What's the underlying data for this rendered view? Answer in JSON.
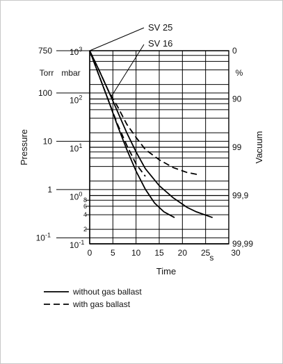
{
  "chart_data": {
    "type": "line",
    "x_axis": {
      "label": "Time",
      "unit": "s",
      "ticks": [
        "0",
        "5",
        "10",
        "15",
        "20",
        "25",
        "30"
      ],
      "range": [
        0,
        30
      ],
      "grid": true
    },
    "y_axis": {
      "label": "Pressure",
      "scale": "log",
      "range_mbar": [
        0.1,
        1000
      ],
      "torr_unit": "Torr",
      "torr_ticks": [
        {
          "label": "750",
          "value_mbar": 1000
        },
        {
          "label": "100",
          "value_mbar": 133
        },
        {
          "label": "10",
          "value_mbar": 13.3
        },
        {
          "label": "1",
          "value_mbar": 1.33
        },
        {
          "label": "10",
          "sup": "-1",
          "value_mbar": 0.133
        }
      ],
      "mbar_unit": "mbar",
      "mbar_ticks": [
        {
          "base": "10",
          "sup": "3",
          "value_mbar": 1000
        },
        {
          "base": "10",
          "sup": "2",
          "value_mbar": 100
        },
        {
          "base": "10",
          "sup": "1",
          "value_mbar": 10
        },
        {
          "base": "10",
          "sup": "0",
          "value_mbar": 1
        },
        {
          "base": "10",
          "sup": "-1",
          "value_mbar": 0.1
        }
      ],
      "mbar_minor_ticks": [
        {
          "label": "8",
          "value_mbar": 0.8
        },
        {
          "label": "6",
          "value_mbar": 0.6
        },
        {
          "label": "4",
          "value_mbar": 0.4
        },
        {
          "label": "2",
          "value_mbar": 0.2
        }
      ]
    },
    "y2_axis": {
      "label": "Vacuum",
      "unit": "%",
      "ticks": [
        {
          "label": "0",
          "value_mbar": 1000
        },
        {
          "label": "90",
          "value_mbar": 100
        },
        {
          "label": "99",
          "value_mbar": 10
        },
        {
          "label": "99,9",
          "value_mbar": 1
        },
        {
          "label": "99,99",
          "value_mbar": 0.1
        }
      ]
    },
    "series": [
      {
        "name": "SV 25",
        "style": "solid",
        "points": [
          [
            0,
            1000
          ],
          [
            2,
            310
          ],
          [
            4,
            95
          ],
          [
            6,
            28
          ],
          [
            8,
            9
          ],
          [
            10,
            3.2
          ],
          [
            12,
            1.35
          ],
          [
            14,
            0.7
          ],
          [
            16,
            0.46
          ],
          [
            18.3,
            0.35
          ]
        ]
      },
      {
        "name": "SV 25",
        "style": "dashed",
        "points": [
          [
            0,
            1000
          ],
          [
            2,
            310
          ],
          [
            4,
            95
          ],
          [
            6,
            30
          ],
          [
            8,
            11
          ],
          [
            10,
            4.5
          ],
          [
            12,
            2.5
          ]
        ]
      },
      {
        "name": "SV 16",
        "style": "solid",
        "points": [
          [
            0,
            1000
          ],
          [
            2,
            400
          ],
          [
            4,
            150
          ],
          [
            6,
            55
          ],
          [
            8,
            20
          ],
          [
            10,
            8
          ],
          [
            12,
            3.6
          ],
          [
            15,
            1.6
          ],
          [
            18,
            0.9
          ],
          [
            21,
            0.57
          ],
          [
            23,
            0.46
          ],
          [
            26.5,
            0.35
          ]
        ]
      },
      {
        "name": "SV 16",
        "style": "dashed",
        "points": [
          [
            0,
            1000
          ],
          [
            2,
            400
          ],
          [
            4,
            150
          ],
          [
            6,
            70
          ],
          [
            8,
            30
          ],
          [
            10,
            16
          ],
          [
            12,
            9
          ],
          [
            15,
            5.5
          ],
          [
            18,
            3.8
          ],
          [
            21,
            3.0
          ],
          [
            23.5,
            2.7
          ]
        ]
      }
    ],
    "labels": {
      "sv25": "SV 25",
      "sv16": "SV 16"
    },
    "legend": [
      {
        "style": "solid",
        "label": "without gas ballast"
      },
      {
        "style": "dashed",
        "label": "with gas ballast"
      }
    ],
    "grid": true,
    "legend_position": "bottom-left"
  }
}
